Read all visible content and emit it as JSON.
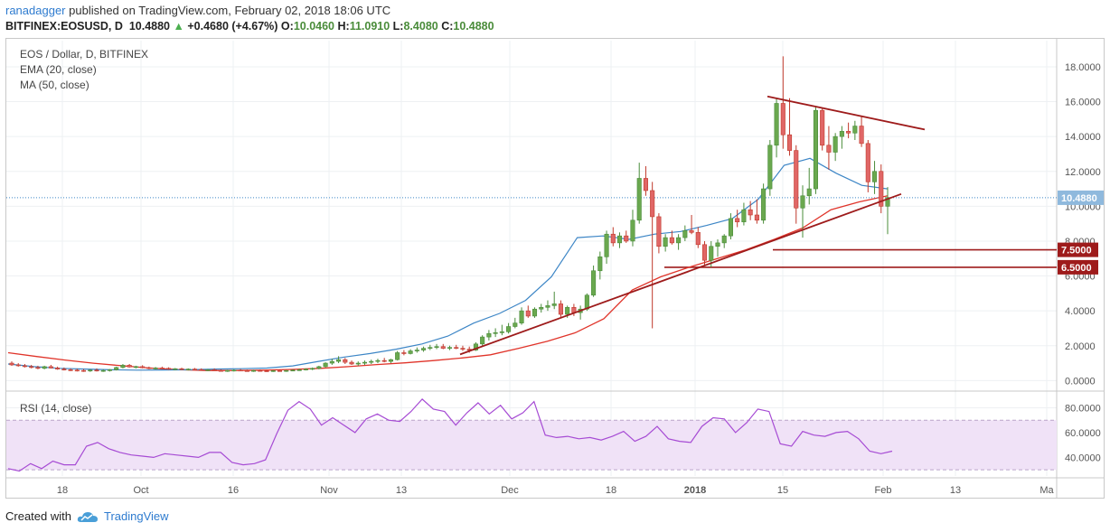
{
  "header": {
    "user": "ranadagger",
    "published_text": "published on TradingView.com, February 02, 2018 18:06 UTC",
    "symbol_line": "BITFINEX:EOSUSD, D",
    "last": "10.4880",
    "change": "+0.4680 (+4.67%)",
    "o_label": "O:",
    "o_value": "10.0460",
    "h_label": "H:",
    "h_value": "11.0910",
    "l_label": "L:",
    "l_value": "8.4080",
    "c_label": "C:",
    "c_value": "10.4880"
  },
  "legend": {
    "title": "EOS / Dollar, D, BITFINEX",
    "ema": "EMA (20, close)",
    "ma": "MA (50, close)",
    "rsi": "RSI (14, close)"
  },
  "footer": {
    "created_with": "Created with",
    "brand": "TradingView"
  },
  "colors": {
    "up": "#4a8c3a",
    "down": "#c0392b",
    "ema": "#3d86c6",
    "ma": "#e0342a",
    "trendline": "#9e1b1b",
    "rsi_line": "#a64bd4",
    "rsi_band": "#f0e2f7"
  },
  "chart_data": {
    "type": "candlestick",
    "price_axis": {
      "ticks": [
        "0.0000",
        "2.0000",
        "4.0000",
        "6.0000",
        "8.0000",
        "10.0000",
        "12.0000",
        "14.0000",
        "16.0000",
        "18.0000"
      ],
      "range": [
        -0.5,
        19.5
      ]
    },
    "last_price_label": "10.4880",
    "support_labels": [
      {
        "label": "7.5000",
        "value": 7.5
      },
      {
        "label": "6.5000",
        "value": 6.5
      }
    ],
    "x_tick_labels": [
      "18",
      "Oct",
      "16",
      "Nov",
      "13",
      "Dec",
      "18",
      "2018",
      "15",
      "Feb",
      "13",
      "Ma"
    ],
    "rsi_axis": {
      "ticks": [
        "40.0000",
        "60.0000",
        "80.0000"
      ],
      "band": [
        30,
        70
      ],
      "range": [
        25,
        92
      ]
    },
    "candles": [
      {
        "o": 1.0,
        "h": 1.1,
        "l": 0.85,
        "c": 0.9
      },
      {
        "o": 0.9,
        "h": 1.0,
        "l": 0.8,
        "c": 0.85
      },
      {
        "o": 0.85,
        "h": 0.95,
        "l": 0.75,
        "c": 0.8
      },
      {
        "o": 0.8,
        "h": 0.9,
        "l": 0.7,
        "c": 0.75
      },
      {
        "o": 0.75,
        "h": 0.85,
        "l": 0.65,
        "c": 0.7
      },
      {
        "o": 0.7,
        "h": 0.85,
        "l": 0.65,
        "c": 0.8
      },
      {
        "o": 0.8,
        "h": 0.9,
        "l": 0.7,
        "c": 0.72
      },
      {
        "o": 0.72,
        "h": 0.8,
        "l": 0.62,
        "c": 0.66
      },
      {
        "o": 0.66,
        "h": 0.75,
        "l": 0.58,
        "c": 0.62
      },
      {
        "o": 0.62,
        "h": 0.7,
        "l": 0.55,
        "c": 0.6
      },
      {
        "o": 0.6,
        "h": 0.68,
        "l": 0.52,
        "c": 0.58
      },
      {
        "o": 0.58,
        "h": 0.66,
        "l": 0.5,
        "c": 0.55
      },
      {
        "o": 0.55,
        "h": 0.65,
        "l": 0.5,
        "c": 0.6
      },
      {
        "o": 0.6,
        "h": 0.7,
        "l": 0.52,
        "c": 0.57
      },
      {
        "o": 0.57,
        "h": 0.65,
        "l": 0.5,
        "c": 0.58
      },
      {
        "o": 0.58,
        "h": 0.66,
        "l": 0.52,
        "c": 0.62
      },
      {
        "o": 0.62,
        "h": 0.8,
        "l": 0.58,
        "c": 0.75
      },
      {
        "o": 0.75,
        "h": 0.95,
        "l": 0.7,
        "c": 0.88
      },
      {
        "o": 0.88,
        "h": 0.95,
        "l": 0.75,
        "c": 0.78
      },
      {
        "o": 0.78,
        "h": 0.85,
        "l": 0.7,
        "c": 0.8
      },
      {
        "o": 0.8,
        "h": 0.88,
        "l": 0.7,
        "c": 0.74
      },
      {
        "o": 0.74,
        "h": 0.8,
        "l": 0.65,
        "c": 0.7
      },
      {
        "o": 0.7,
        "h": 0.78,
        "l": 0.64,
        "c": 0.72
      },
      {
        "o": 0.72,
        "h": 0.8,
        "l": 0.66,
        "c": 0.7
      },
      {
        "o": 0.7,
        "h": 0.76,
        "l": 0.62,
        "c": 0.65
      },
      {
        "o": 0.65,
        "h": 0.72,
        "l": 0.6,
        "c": 0.68
      },
      {
        "o": 0.68,
        "h": 0.74,
        "l": 0.6,
        "c": 0.64
      },
      {
        "o": 0.64,
        "h": 0.7,
        "l": 0.58,
        "c": 0.66
      },
      {
        "o": 0.66,
        "h": 0.72,
        "l": 0.6,
        "c": 0.63
      },
      {
        "o": 0.63,
        "h": 0.7,
        "l": 0.56,
        "c": 0.6
      },
      {
        "o": 0.6,
        "h": 0.66,
        "l": 0.55,
        "c": 0.62
      },
      {
        "o": 0.62,
        "h": 0.7,
        "l": 0.56,
        "c": 0.58
      },
      {
        "o": 0.58,
        "h": 0.64,
        "l": 0.52,
        "c": 0.56
      },
      {
        "o": 0.56,
        "h": 0.62,
        "l": 0.5,
        "c": 0.58
      },
      {
        "o": 0.58,
        "h": 0.64,
        "l": 0.52,
        "c": 0.6
      },
      {
        "o": 0.6,
        "h": 0.66,
        "l": 0.55,
        "c": 0.57
      },
      {
        "o": 0.57,
        "h": 0.63,
        "l": 0.52,
        "c": 0.55
      },
      {
        "o": 0.55,
        "h": 0.62,
        "l": 0.5,
        "c": 0.58
      },
      {
        "o": 0.58,
        "h": 0.64,
        "l": 0.53,
        "c": 0.56
      },
      {
        "o": 0.56,
        "h": 0.6,
        "l": 0.5,
        "c": 0.54
      },
      {
        "o": 0.54,
        "h": 0.6,
        "l": 0.5,
        "c": 0.57
      },
      {
        "o": 0.57,
        "h": 0.62,
        "l": 0.52,
        "c": 0.55
      },
      {
        "o": 0.55,
        "h": 0.6,
        "l": 0.5,
        "c": 0.58
      },
      {
        "o": 0.58,
        "h": 0.64,
        "l": 0.54,
        "c": 0.6
      },
      {
        "o": 0.6,
        "h": 0.68,
        "l": 0.56,
        "c": 0.62
      },
      {
        "o": 0.62,
        "h": 0.7,
        "l": 0.58,
        "c": 0.66
      },
      {
        "o": 0.66,
        "h": 0.75,
        "l": 0.6,
        "c": 0.7
      },
      {
        "o": 0.7,
        "h": 0.85,
        "l": 0.65,
        "c": 0.8
      },
      {
        "o": 0.8,
        "h": 1.05,
        "l": 0.75,
        "c": 1.0
      },
      {
        "o": 1.0,
        "h": 1.25,
        "l": 0.9,
        "c": 1.1
      },
      {
        "o": 1.1,
        "h": 1.4,
        "l": 1.0,
        "c": 1.2
      },
      {
        "o": 1.2,
        "h": 1.3,
        "l": 0.95,
        "c": 1.05
      },
      {
        "o": 1.05,
        "h": 1.15,
        "l": 0.9,
        "c": 0.95
      },
      {
        "o": 0.95,
        "h": 1.1,
        "l": 0.85,
        "c": 1.0
      },
      {
        "o": 1.0,
        "h": 1.15,
        "l": 0.9,
        "c": 1.05
      },
      {
        "o": 1.05,
        "h": 1.2,
        "l": 0.95,
        "c": 1.1
      },
      {
        "o": 1.1,
        "h": 1.25,
        "l": 1.0,
        "c": 1.15
      },
      {
        "o": 1.15,
        "h": 1.3,
        "l": 1.05,
        "c": 1.1
      },
      {
        "o": 1.1,
        "h": 1.25,
        "l": 1.0,
        "c": 1.2
      },
      {
        "o": 1.2,
        "h": 1.7,
        "l": 1.15,
        "c": 1.6
      },
      {
        "o": 1.6,
        "h": 1.75,
        "l": 1.45,
        "c": 1.55
      },
      {
        "o": 1.55,
        "h": 1.8,
        "l": 1.5,
        "c": 1.7
      },
      {
        "o": 1.7,
        "h": 1.9,
        "l": 1.6,
        "c": 1.75
      },
      {
        "o": 1.75,
        "h": 1.95,
        "l": 1.65,
        "c": 1.85
      },
      {
        "o": 1.85,
        "h": 2.05,
        "l": 1.75,
        "c": 1.9
      },
      {
        "o": 1.9,
        "h": 2.1,
        "l": 1.8,
        "c": 1.95
      },
      {
        "o": 1.95,
        "h": 2.1,
        "l": 1.8,
        "c": 1.85
      },
      {
        "o": 1.85,
        "h": 2.0,
        "l": 1.75,
        "c": 1.9
      },
      {
        "o": 1.9,
        "h": 2.05,
        "l": 1.8,
        "c": 1.85
      },
      {
        "o": 1.85,
        "h": 2.0,
        "l": 1.7,
        "c": 1.8
      },
      {
        "o": 1.8,
        "h": 1.95,
        "l": 1.6,
        "c": 1.75
      },
      {
        "o": 1.75,
        "h": 2.2,
        "l": 1.7,
        "c": 2.1
      },
      {
        "o": 2.1,
        "h": 2.6,
        "l": 2.0,
        "c": 2.5
      },
      {
        "o": 2.5,
        "h": 2.9,
        "l": 2.3,
        "c": 2.7
      },
      {
        "o": 2.7,
        "h": 3.0,
        "l": 2.5,
        "c": 2.75
      },
      {
        "o": 2.75,
        "h": 3.2,
        "l": 2.6,
        "c": 2.8
      },
      {
        "o": 2.8,
        "h": 3.3,
        "l": 2.7,
        "c": 3.1
      },
      {
        "o": 3.1,
        "h": 3.6,
        "l": 3.0,
        "c": 3.3
      },
      {
        "o": 3.3,
        "h": 4.2,
        "l": 3.2,
        "c": 4.0
      },
      {
        "o": 4.0,
        "h": 4.3,
        "l": 3.6,
        "c": 3.7
      },
      {
        "o": 3.7,
        "h": 4.2,
        "l": 3.6,
        "c": 4.1
      },
      {
        "o": 4.1,
        "h": 4.4,
        "l": 3.9,
        "c": 4.2
      },
      {
        "o": 4.2,
        "h": 4.6,
        "l": 4.0,
        "c": 4.3
      },
      {
        "o": 4.3,
        "h": 5.1,
        "l": 4.1,
        "c": 4.4
      },
      {
        "o": 4.4,
        "h": 4.6,
        "l": 3.6,
        "c": 3.8
      },
      {
        "o": 3.8,
        "h": 4.3,
        "l": 3.6,
        "c": 4.2
      },
      {
        "o": 4.2,
        "h": 4.4,
        "l": 3.7,
        "c": 3.9
      },
      {
        "o": 3.9,
        "h": 4.3,
        "l": 3.5,
        "c": 4.1
      },
      {
        "o": 4.1,
        "h": 5.0,
        "l": 4.0,
        "c": 4.9
      },
      {
        "o": 4.9,
        "h": 6.6,
        "l": 4.8,
        "c": 6.3
      },
      {
        "o": 6.3,
        "h": 7.4,
        "l": 5.8,
        "c": 7.1
      },
      {
        "o": 7.1,
        "h": 8.6,
        "l": 6.7,
        "c": 8.4
      },
      {
        "o": 8.4,
        "h": 8.8,
        "l": 7.7,
        "c": 7.9
      },
      {
        "o": 7.9,
        "h": 8.5,
        "l": 7.6,
        "c": 8.3
      },
      {
        "o": 8.3,
        "h": 8.6,
        "l": 7.9,
        "c": 8.0
      },
      {
        "o": 8.0,
        "h": 9.8,
        "l": 7.7,
        "c": 9.2
      },
      {
        "o": 9.2,
        "h": 12.5,
        "l": 9.0,
        "c": 11.6
      },
      {
        "o": 11.6,
        "h": 12.3,
        "l": 10.6,
        "c": 10.9
      },
      {
        "o": 10.9,
        "h": 11.4,
        "l": 3.0,
        "c": 9.4
      },
      {
        "o": 9.4,
        "h": 9.6,
        "l": 7.3,
        "c": 7.7
      },
      {
        "o": 7.7,
        "h": 8.4,
        "l": 7.4,
        "c": 8.2
      },
      {
        "o": 8.2,
        "h": 8.6,
        "l": 7.8,
        "c": 7.9
      },
      {
        "o": 7.9,
        "h": 8.4,
        "l": 7.5,
        "c": 8.2
      },
      {
        "o": 8.2,
        "h": 8.9,
        "l": 8.0,
        "c": 8.6
      },
      {
        "o": 8.6,
        "h": 9.5,
        "l": 8.4,
        "c": 8.5
      },
      {
        "o": 8.5,
        "h": 8.8,
        "l": 7.6,
        "c": 7.8
      },
      {
        "o": 7.8,
        "h": 8.0,
        "l": 6.6,
        "c": 6.9
      },
      {
        "o": 6.9,
        "h": 8.0,
        "l": 6.5,
        "c": 7.7
      },
      {
        "o": 7.7,
        "h": 8.1,
        "l": 7.1,
        "c": 7.9
      },
      {
        "o": 7.9,
        "h": 8.4,
        "l": 7.6,
        "c": 8.3
      },
      {
        "o": 8.3,
        "h": 9.6,
        "l": 8.1,
        "c": 9.3
      },
      {
        "o": 9.3,
        "h": 9.8,
        "l": 8.8,
        "c": 9.1
      },
      {
        "o": 9.1,
        "h": 10.2,
        "l": 8.9,
        "c": 9.8
      },
      {
        "o": 9.8,
        "h": 10.3,
        "l": 9.2,
        "c": 9.5
      },
      {
        "o": 9.5,
        "h": 10.4,
        "l": 9.0,
        "c": 9.2
      },
      {
        "o": 9.2,
        "h": 11.3,
        "l": 9.0,
        "c": 11.0
      },
      {
        "o": 11.0,
        "h": 13.8,
        "l": 10.6,
        "c": 13.5
      },
      {
        "o": 13.5,
        "h": 16.2,
        "l": 12.8,
        "c": 15.9
      },
      {
        "o": 15.9,
        "h": 18.6,
        "l": 13.3,
        "c": 14.1
      },
      {
        "o": 14.1,
        "h": 16.2,
        "l": 12.9,
        "c": 13.2
      },
      {
        "o": 13.2,
        "h": 13.5,
        "l": 9.0,
        "c": 9.9
      },
      {
        "o": 9.9,
        "h": 11.2,
        "l": 8.2,
        "c": 10.6
      },
      {
        "o": 10.6,
        "h": 12.2,
        "l": 10.1,
        "c": 11.0
      },
      {
        "o": 11.0,
        "h": 15.7,
        "l": 10.7,
        "c": 15.5
      },
      {
        "o": 15.5,
        "h": 15.6,
        "l": 13.2,
        "c": 13.5
      },
      {
        "o": 13.5,
        "h": 14.6,
        "l": 12.1,
        "c": 13.1
      },
      {
        "o": 13.1,
        "h": 14.2,
        "l": 12.6,
        "c": 14.0
      },
      {
        "o": 14.0,
        "h": 14.6,
        "l": 13.3,
        "c": 14.3
      },
      {
        "o": 14.3,
        "h": 14.8,
        "l": 13.9,
        "c": 14.2
      },
      {
        "o": 14.2,
        "h": 14.9,
        "l": 13.8,
        "c": 14.6
      },
      {
        "o": 14.6,
        "h": 15.2,
        "l": 13.4,
        "c": 13.6
      },
      {
        "o": 13.6,
        "h": 13.8,
        "l": 10.8,
        "c": 11.4
      },
      {
        "o": 11.4,
        "h": 12.6,
        "l": 10.7,
        "c": 12.0
      },
      {
        "o": 12.0,
        "h": 12.4,
        "l": 9.6,
        "c": 10.0
      },
      {
        "o": 10.0,
        "h": 11.1,
        "l": 8.4,
        "c": 10.5
      }
    ],
    "ema20": [
      0.95,
      0.8,
      0.7,
      0.66,
      0.62,
      0.6,
      0.61,
      0.62,
      0.66,
      0.68,
      0.72,
      0.84,
      1.1,
      1.35,
      1.55,
      1.8,
      2.1,
      2.55,
      3.3,
      3.85,
      4.6,
      5.95,
      8.2,
      8.3,
      8.1,
      8.4,
      8.55,
      8.9,
      9.3,
      10.4,
      12.35,
      12.75,
      11.9,
      11.2,
      11.0
    ],
    "ma50": [
      1.6,
      1.38,
      1.18,
      1.0,
      0.85,
      0.72,
      0.63,
      0.58,
      0.58,
      0.6,
      0.64,
      0.7,
      0.8,
      0.92,
      1.02,
      1.15,
      1.3,
      1.48,
      1.85,
      2.25,
      2.75,
      3.55,
      5.2,
      5.95,
      6.5,
      7.0,
      7.5,
      8.1,
      8.75,
      9.8,
      10.25,
      10.6
    ],
    "rsi": [
      31,
      29,
      35,
      31,
      37,
      34,
      34,
      49,
      52,
      47,
      44,
      42,
      41,
      40,
      43,
      42,
      41,
      40,
      44,
      44,
      36,
      34,
      35,
      38,
      59,
      78,
      85,
      79,
      66,
      72,
      66,
      60,
      71,
      75,
      70,
      69,
      77,
      87,
      79,
      77,
      66,
      76,
      84,
      75,
      82,
      71,
      76,
      85,
      58,
      56,
      57,
      55,
      56,
      54,
      57,
      61,
      53,
      57,
      65,
      55,
      53,
      52,
      65,
      72,
      71,
      60,
      68,
      79,
      77,
      51,
      49,
      61,
      58,
      57,
      60,
      61,
      55,
      45,
      43,
      45
    ]
  }
}
